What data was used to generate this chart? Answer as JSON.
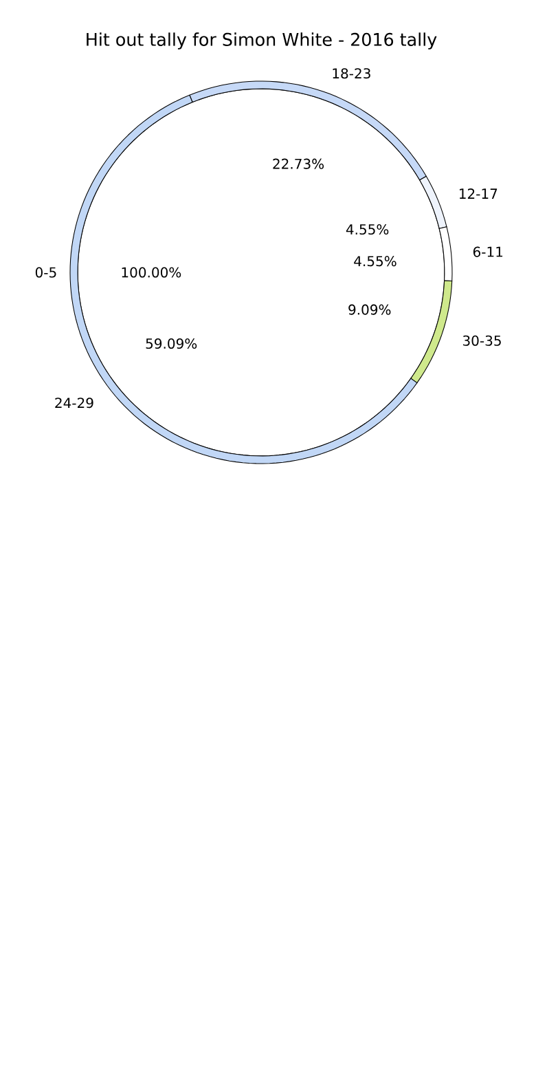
{
  "chart_data": [
    {
      "type": "pie",
      "title": "Hit out tally for Simon White - 2016 tally",
      "categories": [
        "0-5"
      ],
      "values": [
        100.0
      ],
      "value_labels": [
        "100.00%"
      ],
      "colors": [
        "#ffffff"
      ]
    },
    {
      "type": "donut",
      "categories": [
        "18-23",
        "12-17",
        "6-11",
        "30-35",
        "24-29"
      ],
      "values": [
        22.73,
        4.55,
        4.55,
        9.09,
        59.09
      ],
      "value_labels": [
        "22.73%",
        "4.55%",
        "4.55%",
        "9.09%",
        "59.09%"
      ],
      "colors": [
        "#c6d9f7",
        "#eef3fc",
        "#ffffff",
        "#cfe98c",
        "#c1d7f6"
      ]
    }
  ]
}
